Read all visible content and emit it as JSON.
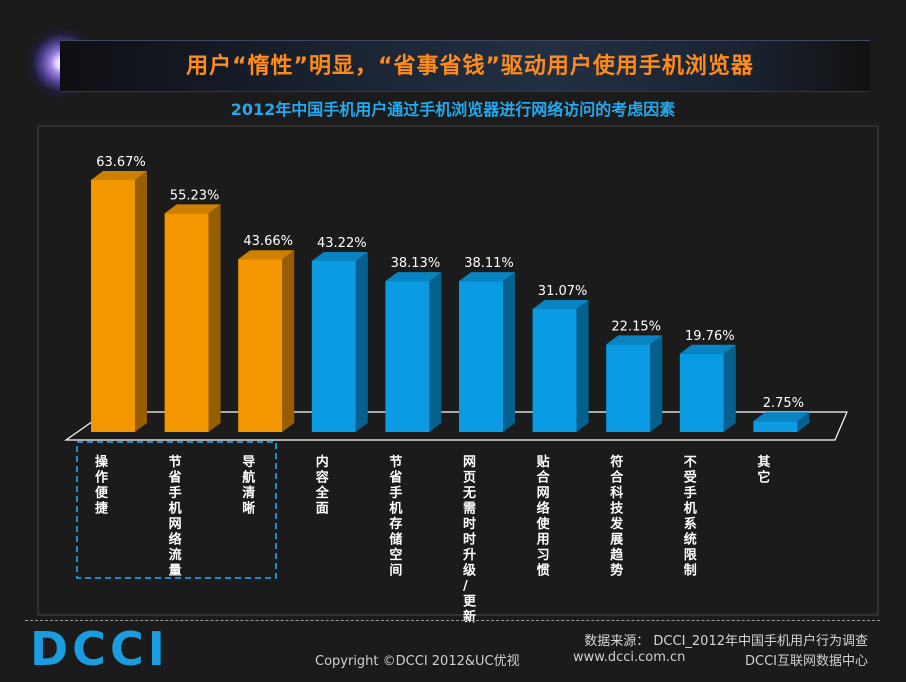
{
  "header": {
    "title": "用户“惰性”明显，“省事省钱”驱动用户使用手机浏览器",
    "subtitle": "2012年中国手机用户通过手机浏览器进行网络访问的考虑因素"
  },
  "footer": {
    "source": "数据来源： DCCI_2012年中国手机用户行为调查",
    "copyright": "Copyright ©DCCI 2012&UC优视",
    "website": "www.dcci.com.cn",
    "center": "DCCI互联网数据中心",
    "logo_text": "DCCI"
  },
  "colors": {
    "highlight_bar": "#f29700",
    "normal_bar": "#0a9be3",
    "background": "#1b1b1b",
    "title": "#ff8c1a",
    "subtitle": "#26a8ee",
    "label_text": "#ffffff",
    "highlight_box": "#1a9de0"
  },
  "chart_data": {
    "type": "bar",
    "title": "2012年中国手机用户通过手机浏览器进行网络访问的考虑因素",
    "categories": [
      "操作便捷",
      "节省手机网络流量",
      "导航清晰",
      "内容全面",
      "节省手机存储空间",
      "网页无需时时升级/更新",
      "贴合网络使用习惯",
      "符合科技发展趋势",
      "不受手机系统限制",
      "其它"
    ],
    "values": [
      63.67,
      55.23,
      43.66,
      43.22,
      38.13,
      38.11,
      31.07,
      22.15,
      19.76,
      2.75
    ],
    "data_labels": [
      "63.67%",
      "55.23%",
      "43.66%",
      "43.22%",
      "38.13%",
      "38.11%",
      "31.07%",
      "22.15%",
      "19.76%",
      "2.75%"
    ],
    "highlighted_indices": [
      0,
      1,
      2
    ],
    "ylim": [
      0,
      70
    ],
    "grid": false,
    "legend": "none"
  }
}
